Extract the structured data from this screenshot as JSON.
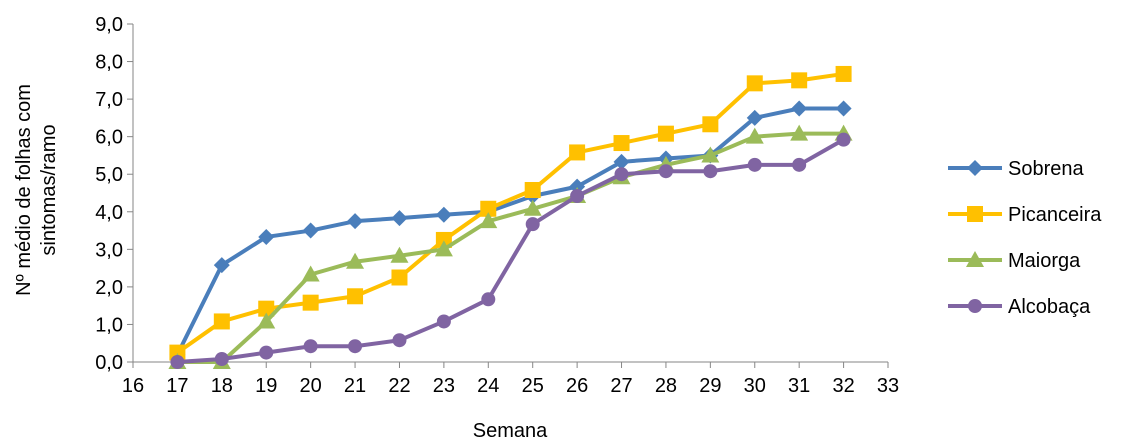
{
  "chart_data": {
    "type": "line",
    "title": "",
    "xlabel": "Semana",
    "ylabel_lines": [
      "Nº médio de folhas com",
      "sintomas/ramo"
    ],
    "xlim": [
      16,
      33
    ],
    "ylim": [
      0,
      9
    ],
    "x_ticks": [
      "16",
      "17",
      "18",
      "19",
      "20",
      "21",
      "22",
      "23",
      "24",
      "25",
      "26",
      "27",
      "28",
      "29",
      "30",
      "31",
      "32",
      "33"
    ],
    "y_ticks": [
      "0,0",
      "1,0",
      "2,0",
      "3,0",
      "4,0",
      "5,0",
      "6,0",
      "7,0",
      "8,0",
      "9,0"
    ],
    "grid": false,
    "legend_position": "right",
    "x": [
      17,
      18,
      19,
      20,
      21,
      22,
      23,
      24,
      25,
      26,
      27,
      28,
      29,
      30,
      31,
      32
    ],
    "series": [
      {
        "name": "Sobrena",
        "color": "#4a7ebb",
        "marker": "diamond",
        "values": [
          0.2,
          2.58,
          3.33,
          3.5,
          3.75,
          3.83,
          3.92,
          4.0,
          4.42,
          4.67,
          5.33,
          5.42,
          5.5,
          6.5,
          6.75,
          6.75
        ]
      },
      {
        "name": "Picanceira",
        "color": "#ffc000",
        "marker": "square",
        "values": [
          0.25,
          1.08,
          1.42,
          1.58,
          1.75,
          2.25,
          3.25,
          4.08,
          4.58,
          5.58,
          5.83,
          6.08,
          6.33,
          7.42,
          7.5,
          7.67
        ]
      },
      {
        "name": "Maiorga",
        "color": "#9bbb59",
        "marker": "triangle",
        "values": [
          0.0,
          0.0,
          1.08,
          2.33,
          2.67,
          2.83,
          3.0,
          3.75,
          4.08,
          4.42,
          4.92,
          5.25,
          5.5,
          6.0,
          6.08,
          6.08
        ]
      },
      {
        "name": "Alcobaça",
        "color": "#8064a2",
        "marker": "circle",
        "values": [
          0.0,
          0.08,
          0.25,
          0.42,
          0.42,
          0.58,
          1.08,
          1.67,
          3.67,
          4.42,
          5.0,
          5.08,
          5.08,
          5.25,
          5.25,
          5.92
        ]
      }
    ]
  }
}
